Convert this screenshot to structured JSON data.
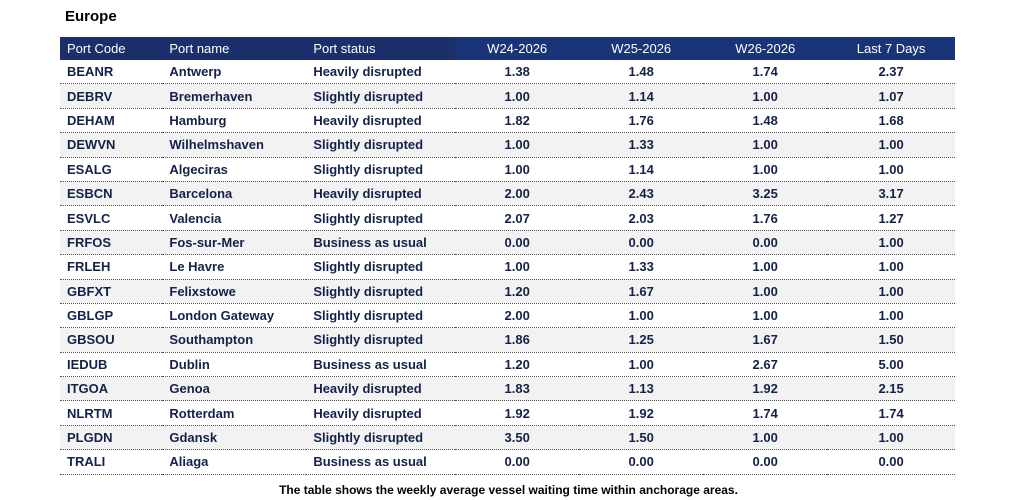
{
  "title": "Europe",
  "table": {
    "headers": [
      "Port Code",
      "Port name",
      "Port status",
      "W24-2026",
      "W25-2026",
      "W26-2026",
      "Last 7 Days"
    ],
    "rows": [
      [
        "BEANR",
        "Antwerp",
        "Heavily disrupted",
        "1.38",
        "1.48",
        "1.74",
        "2.37"
      ],
      [
        "DEBRV",
        "Bremerhaven",
        "Slightly disrupted",
        "1.00",
        "1.14",
        "1.00",
        "1.07"
      ],
      [
        "DEHAM",
        "Hamburg",
        "Heavily disrupted",
        "1.82",
        "1.76",
        "1.48",
        "1.68"
      ],
      [
        "DEWVN",
        "Wilhelmshaven",
        "Slightly disrupted",
        "1.00",
        "1.33",
        "1.00",
        "1.00"
      ],
      [
        "ESALG",
        "Algeciras",
        "Slightly disrupted",
        "1.00",
        "1.14",
        "1.00",
        "1.00"
      ],
      [
        "ESBCN",
        "Barcelona",
        "Heavily disrupted",
        "2.00",
        "2.43",
        "3.25",
        "3.17"
      ],
      [
        "ESVLC",
        "Valencia",
        "Slightly disrupted",
        "2.07",
        "2.03",
        "1.76",
        "1.27"
      ],
      [
        "FRFOS",
        "Fos-sur-Mer",
        "Business as usual",
        "0.00",
        "0.00",
        "0.00",
        "1.00"
      ],
      [
        "FRLEH",
        "Le Havre",
        "Slightly disrupted",
        "1.00",
        "1.33",
        "1.00",
        "1.00"
      ],
      [
        "GBFXT",
        "Felixstowe",
        "Slightly disrupted",
        "1.20",
        "1.67",
        "1.00",
        "1.00"
      ],
      [
        "GBLGP",
        "London Gateway",
        "Slightly disrupted",
        "2.00",
        "1.00",
        "1.00",
        "1.00"
      ],
      [
        "GBSOU",
        "Southampton",
        "Slightly disrupted",
        "1.86",
        "1.25",
        "1.67",
        "1.50"
      ],
      [
        "IEDUB",
        "Dublin",
        "Business as usual",
        "1.20",
        "1.00",
        "2.67",
        "5.00"
      ],
      [
        "ITGOA",
        "Genoa",
        "Heavily disrupted",
        "1.83",
        "1.13",
        "1.92",
        "2.15"
      ],
      [
        "NLRTM",
        "Rotterdam",
        "Heavily disrupted",
        "1.92",
        "1.92",
        "1.74",
        "1.74"
      ],
      [
        "PLGDN",
        "Gdansk",
        "Slightly disrupted",
        "3.50",
        "1.50",
        "1.00",
        "1.00"
      ],
      [
        "TRALI",
        "Aliaga",
        "Business as usual",
        "0.00",
        "0.00",
        "0.00",
        "0.00"
      ]
    ]
  },
  "caption": "The table shows the weekly average vessel waiting time within anchorage areas."
}
